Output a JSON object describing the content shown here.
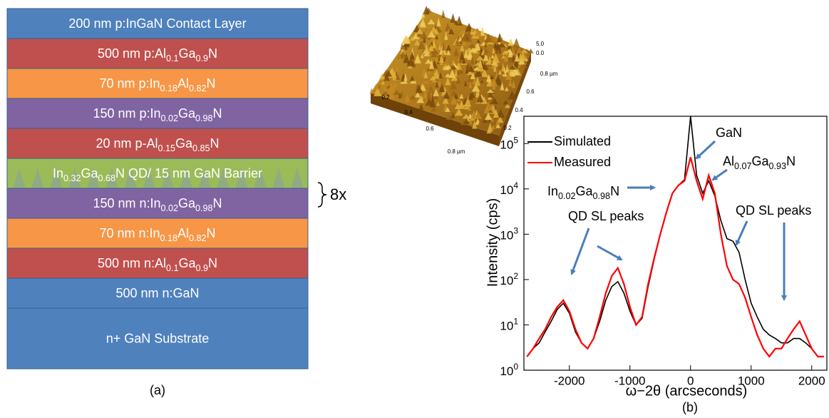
{
  "layer_stack": {
    "layers": [
      {
        "color": "#4f81bd",
        "parts": [
          {
            "t": "200 nm p:InGaN Contact Layer"
          }
        ]
      },
      {
        "color": "#c0504d",
        "parts": [
          {
            "t": "500 nm p:Al"
          },
          {
            "s": "0.1"
          },
          {
            "t": "Ga"
          },
          {
            "s": "0.9"
          },
          {
            "t": "N"
          }
        ]
      },
      {
        "color": "#f79646",
        "parts": [
          {
            "t": "70 nm p:In"
          },
          {
            "s": "0.18"
          },
          {
            "t": "Al"
          },
          {
            "s": "0.82"
          },
          {
            "t": "N"
          }
        ]
      },
      {
        "color": "#8064a2",
        "parts": [
          {
            "t": "150 nm p:In"
          },
          {
            "s": "0.02"
          },
          {
            "t": "Ga"
          },
          {
            "s": "0.98"
          },
          {
            "t": "N"
          }
        ]
      },
      {
        "color": "#c0504d",
        "parts": [
          {
            "t": "20 nm p-Al"
          },
          {
            "s": "0.15"
          },
          {
            "t": "Ga"
          },
          {
            "s": "0.85"
          },
          {
            "t": "N"
          }
        ]
      },
      {
        "color": "#9bbb59",
        "parts": [
          {
            "t": "In"
          },
          {
            "s": "0.32"
          },
          {
            "t": "Ga"
          },
          {
            "s": "0.68"
          },
          {
            "t": "N QD/ 15 nm GaN Barrier"
          }
        ]
      },
      {
        "color": "#8064a2",
        "parts": [
          {
            "t": "150 nm n:In"
          },
          {
            "s": "0.02"
          },
          {
            "t": "Ga"
          },
          {
            "s": "0.98"
          },
          {
            "t": "N"
          }
        ]
      },
      {
        "color": "#f79646",
        "parts": [
          {
            "t": "70 nm n:In"
          },
          {
            "s": "0.18"
          },
          {
            "t": "Al"
          },
          {
            "s": "0.82"
          },
          {
            "t": "N"
          }
        ]
      },
      {
        "color": "#c0504d",
        "parts": [
          {
            "t": "500 nm n:Al"
          },
          {
            "s": "0.1"
          },
          {
            "t": "Ga"
          },
          {
            "s": "0.9"
          },
          {
            "t": "N"
          }
        ]
      },
      {
        "color": "#4f81bd",
        "parts": [
          {
            "t": "500 nm n:GaN"
          }
        ]
      },
      {
        "color": "#4f81bd",
        "parts": [
          {
            "t": "n+ GaN Substrate"
          }
        ]
      }
    ],
    "repeat_label": "8x",
    "caption": "(a)"
  },
  "afm": {
    "x_labels": [
      "0.2",
      "0.4",
      "0.6",
      "0.8 µm"
    ],
    "y_labels": [
      "0.2",
      "0.4",
      "0.6",
      "0.8 µm"
    ],
    "z_labels": [
      "5.0",
      "0.0"
    ]
  },
  "chart_data": {
    "type": "line",
    "xlabel": "ω−2θ (arcseconds)",
    "ylabel": "Intensity (cps)",
    "caption": "(b)",
    "ylog": true,
    "xlim": [
      -2750,
      2250
    ],
    "ylim": [
      1,
      400000
    ],
    "xticks": [
      -2000,
      -1000,
      0,
      1000,
      2000
    ],
    "yticks": [
      {
        "value": 1,
        "label": "10",
        "sup": "0"
      },
      {
        "value": 10,
        "label": "10",
        "sup": "1"
      },
      {
        "value": 100,
        "label": "10",
        "sup": "2"
      },
      {
        "value": 1000,
        "label": "10",
        "sup": "3"
      },
      {
        "value": 10000,
        "label": "10",
        "sup": "4"
      },
      {
        "value": 100000,
        "label": "10",
        "sup": "5"
      }
    ],
    "x": [
      -2700,
      -2600,
      -2500,
      -2400,
      -2300,
      -2200,
      -2100,
      -2000,
      -1900,
      -1800,
      -1700,
      -1600,
      -1500,
      -1400,
      -1300,
      -1200,
      -1100,
      -1000,
      -900,
      -800,
      -700,
      -600,
      -500,
      -400,
      -300,
      -200,
      -100,
      0,
      100,
      200,
      300,
      400,
      500,
      600,
      700,
      800,
      900,
      1000,
      1100,
      1200,
      1300,
      1400,
      1500,
      1600,
      1700,
      1800,
      1900,
      2000,
      2100,
      2200
    ],
    "series": [
      {
        "name": "Simulated",
        "color": "#000000",
        "values": [
          2,
          3,
          4,
          7,
          12,
          22,
          30,
          18,
          7,
          4,
          3,
          5,
          12,
          35,
          70,
          90,
          50,
          20,
          10,
          14,
          70,
          280,
          1000,
          3000,
          8000,
          12000,
          16000,
          400000,
          20000,
          8000,
          15000,
          7000,
          2000,
          800,
          700,
          400,
          100,
          30,
          15,
          8,
          6,
          5,
          4,
          4,
          5,
          5,
          4,
          3,
          2,
          2
        ]
      },
      {
        "name": "Measured",
        "color": "#ff0000",
        "values": [
          2,
          3,
          5,
          8,
          15,
          25,
          35,
          20,
          8,
          4,
          3,
          5,
          15,
          50,
          120,
          180,
          80,
          25,
          10,
          15,
          80,
          300,
          1000,
          3000,
          8000,
          12000,
          15000,
          50000,
          15000,
          6000,
          20000,
          8000,
          1000,
          200,
          100,
          80,
          40,
          15,
          6,
          3,
          2,
          3,
          3,
          5,
          8,
          12,
          6,
          3,
          2,
          2
        ]
      }
    ],
    "annotations": [
      {
        "parts": [
          {
            "t": "GaN"
          }
        ]
      },
      {
        "parts": [
          {
            "t": "Al"
          },
          {
            "s": "0.07"
          },
          {
            "t": "Ga"
          },
          {
            "s": "0.93"
          },
          {
            "t": "N"
          }
        ]
      },
      {
        "parts": [
          {
            "t": "In"
          },
          {
            "s": "0.02"
          },
          {
            "t": "Ga"
          },
          {
            "s": "0.98"
          },
          {
            "t": "N"
          }
        ]
      },
      {
        "parts": [
          {
            "t": "QD SL peaks"
          }
        ]
      },
      {
        "parts": [
          {
            "t": "QD SL peaks"
          }
        ]
      }
    ]
  }
}
